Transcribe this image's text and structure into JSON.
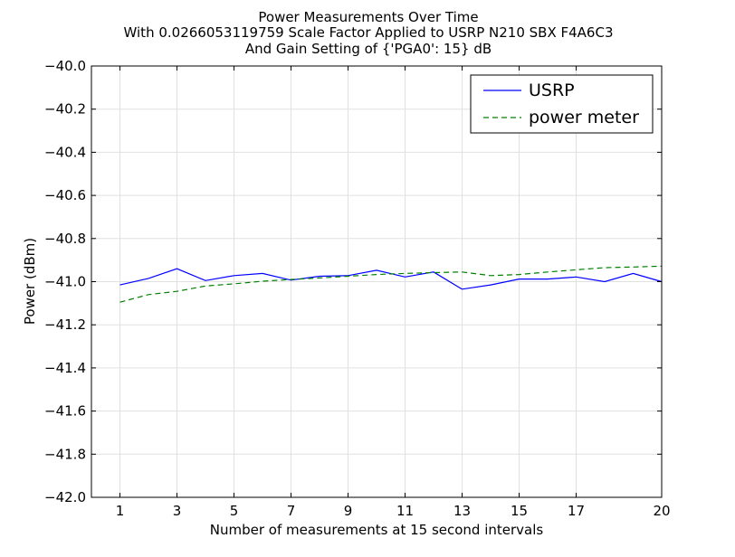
{
  "chart_data": {
    "type": "line",
    "title_lines": [
      "Power Measurements Over Time",
      "With 0.0266053119759 Scale Factor Applied to USRP N210 SBX F4A6C3",
      "And Gain Setting of {'PGA0': 15} dB"
    ],
    "xlabel": "Number of measurements at 15 second intervals",
    "ylabel": "Power (dBm)",
    "xlim": [
      0,
      20
    ],
    "ylim": [
      -42.0,
      -40.0
    ],
    "xticks": [
      1,
      3,
      5,
      7,
      9,
      11,
      13,
      15,
      17,
      20
    ],
    "xtick_labels": [
      "1",
      "3",
      "5",
      "7",
      "9",
      "11",
      "13",
      "15",
      "17",
      "20"
    ],
    "yticks": [
      -40.0,
      -40.2,
      -40.4,
      -40.6,
      -40.8,
      -41.0,
      -41.2,
      -41.4,
      -41.6,
      -41.8,
      -42.0
    ],
    "ytick_labels": [
      "−40.0",
      "−40.2",
      "−40.4",
      "−40.6",
      "−40.8",
      "−41.0",
      "−41.2",
      "−41.4",
      "−41.6",
      "−41.8",
      "−42.0"
    ],
    "grid": true,
    "legend_position": "top-right",
    "x": [
      1,
      2,
      3,
      4,
      5,
      6,
      7,
      8,
      9,
      10,
      11,
      12,
      13,
      14,
      15,
      16,
      17,
      18,
      19,
      20
    ],
    "series": [
      {
        "name": "USRP",
        "color": "#0000ff",
        "dash": "solid",
        "values": [
          -41.015,
          -40.985,
          -40.94,
          -40.995,
          -40.972,
          -40.962,
          -40.993,
          -40.975,
          -40.972,
          -40.947,
          -40.978,
          -40.955,
          -41.035,
          -41.015,
          -40.988,
          -40.988,
          -40.978,
          -41.0,
          -40.962,
          -41.0
        ]
      },
      {
        "name": "power meter",
        "color": "#008000",
        "dash": "dashed",
        "values": [
          -41.095,
          -41.06,
          -41.045,
          -41.02,
          -41.01,
          -40.998,
          -40.99,
          -40.983,
          -40.975,
          -40.967,
          -40.962,
          -40.958,
          -40.955,
          -40.972,
          -40.967,
          -40.955,
          -40.945,
          -40.935,
          -40.932,
          -40.928
        ]
      }
    ]
  }
}
